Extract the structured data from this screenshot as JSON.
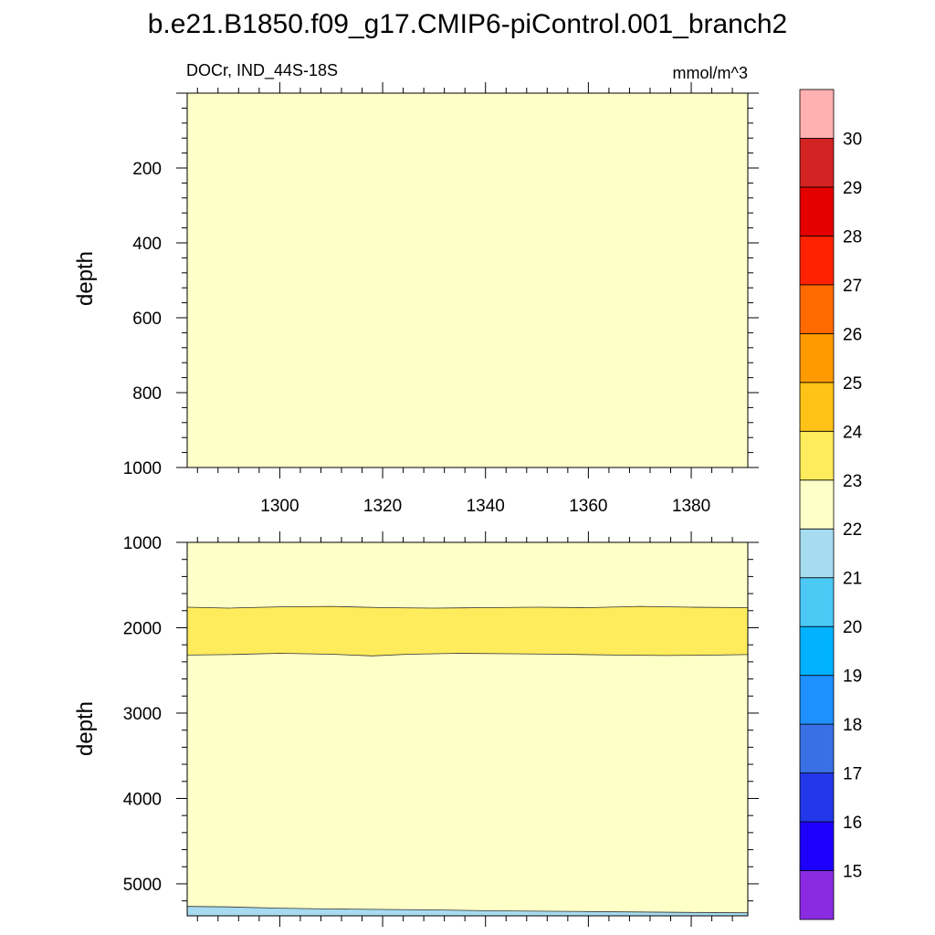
{
  "title": "b.e21.B1850.f09_g17.CMIP6-piControl.001_branch2",
  "left_string": "DOCr, IND_44S-18S",
  "right_string": "mmol/m^3",
  "chart_data": [
    {
      "type": "contour",
      "panel": "upper",
      "ylabel": "depth",
      "xlabel": "",
      "xlim": [
        1282,
        1391
      ],
      "ylim": [
        0,
        1000
      ],
      "y_reversed": true,
      "xticks": [
        1300,
        1320,
        1340,
        1360,
        1380
      ],
      "yticks": [
        200,
        400,
        600,
        800,
        1000
      ],
      "bands": [
        {
          "range": [
            22,
            23
          ],
          "upper": [
            [
              1282,
              0
            ],
            [
              1391,
              0
            ]
          ],
          "lower": [
            [
              1282,
              1000
            ],
            [
              1391,
              1000
            ]
          ]
        }
      ]
    },
    {
      "type": "contour",
      "panel": "lower",
      "ylabel": "depth",
      "xlabel": "",
      "xlim": [
        1282,
        1391
      ],
      "ylim": [
        1000,
        5375
      ],
      "y_reversed": true,
      "xticks": [
        1300,
        1320,
        1340,
        1360,
        1380
      ],
      "yticks": [
        1000,
        2000,
        3000,
        4000,
        5000
      ],
      "bands": [
        {
          "range": [
            22,
            23
          ],
          "upper": [
            [
              1282,
              1000
            ],
            [
              1391,
              1000
            ]
          ],
          "lower": [
            [
              1282,
              5375
            ],
            [
              1391,
              5375
            ]
          ]
        },
        {
          "range": [
            23,
            24
          ],
          "upper": [
            [
              1282,
              1760
            ],
            [
              1290,
              1770
            ],
            [
              1300,
              1755
            ],
            [
              1310,
              1750
            ],
            [
              1320,
              1765
            ],
            [
              1330,
              1770
            ],
            [
              1340,
              1765
            ],
            [
              1350,
              1760
            ],
            [
              1360,
              1765
            ],
            [
              1370,
              1750
            ],
            [
              1380,
              1760
            ],
            [
              1391,
              1765
            ]
          ],
          "lower": [
            [
              1282,
              2320
            ],
            [
              1290,
              2315
            ],
            [
              1300,
              2300
            ],
            [
              1310,
              2310
            ],
            [
              1318,
              2330
            ],
            [
              1325,
              2310
            ],
            [
              1335,
              2300
            ],
            [
              1345,
              2305
            ],
            [
              1355,
              2310
            ],
            [
              1365,
              2320
            ],
            [
              1375,
              2325
            ],
            [
              1385,
              2320
            ],
            [
              1391,
              2315
            ]
          ]
        },
        {
          "range": [
            21,
            22
          ],
          "upper": [
            [
              1282,
              5265
            ],
            [
              1290,
              5270
            ],
            [
              1300,
              5285
            ],
            [
              1310,
              5295
            ],
            [
              1320,
              5300
            ],
            [
              1330,
              5305
            ],
            [
              1340,
              5315
            ],
            [
              1350,
              5320
            ],
            [
              1360,
              5325
            ],
            [
              1370,
              5330
            ],
            [
              1380,
              5335
            ],
            [
              1391,
              5340
            ]
          ],
          "lower": [
            [
              1282,
              5375
            ],
            [
              1391,
              5375
            ]
          ]
        }
      ]
    }
  ],
  "colorbar": {
    "tick_labels": [
      "15",
      "16",
      "17",
      "18",
      "19",
      "20",
      "21",
      "22",
      "23",
      "24",
      "25",
      "26",
      "27",
      "28",
      "29",
      "30"
    ],
    "colors": [
      "#8a2be2",
      "#1e00ff",
      "#2137e8",
      "#3a70e6",
      "#1e90ff",
      "#00b2ff",
      "#4cc8f5",
      "#a6dbf0",
      "#ffffc8",
      "#ffec5c",
      "#ffc317",
      "#ff9a00",
      "#ff6a00",
      "#ff2200",
      "#e50000",
      "#d42323",
      "#ffb0b0"
    ]
  }
}
